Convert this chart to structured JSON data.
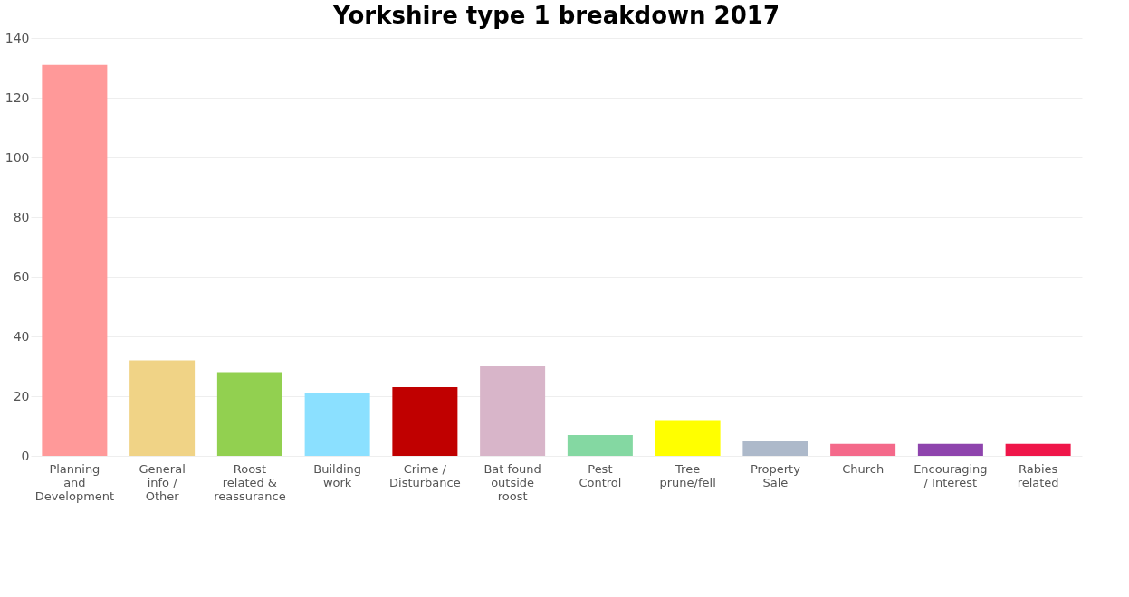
{
  "chart_data": {
    "type": "bar",
    "title": "Yorkshire type 1 breakdown 2017",
    "categories": [
      "Planning and Development",
      "General info / Other",
      "Roost related & reassurance",
      "Building work",
      "Crime / Disturbance",
      "Bat found outside roost",
      "Pest Control",
      "Tree prune/fell",
      "Property Sale",
      "Church",
      "Encouraging / Interest",
      "Rabies related"
    ],
    "values": [
      131,
      32,
      28,
      21,
      23,
      30,
      7,
      12,
      5,
      4,
      4,
      4
    ],
    "colors": [
      "#ff9999",
      "#f0d386",
      "#92d050",
      "#8be0ff",
      "#c00000",
      "#d8b5c9",
      "#84d8a2",
      "#ffff00",
      "#adb9ca",
      "#f4698a",
      "#8e44ad",
      "#ef1649"
    ],
    "ylim": [
      0,
      140
    ],
    "yticks": [
      0,
      20,
      40,
      60,
      80,
      100,
      120,
      140
    ],
    "grid": "y"
  }
}
